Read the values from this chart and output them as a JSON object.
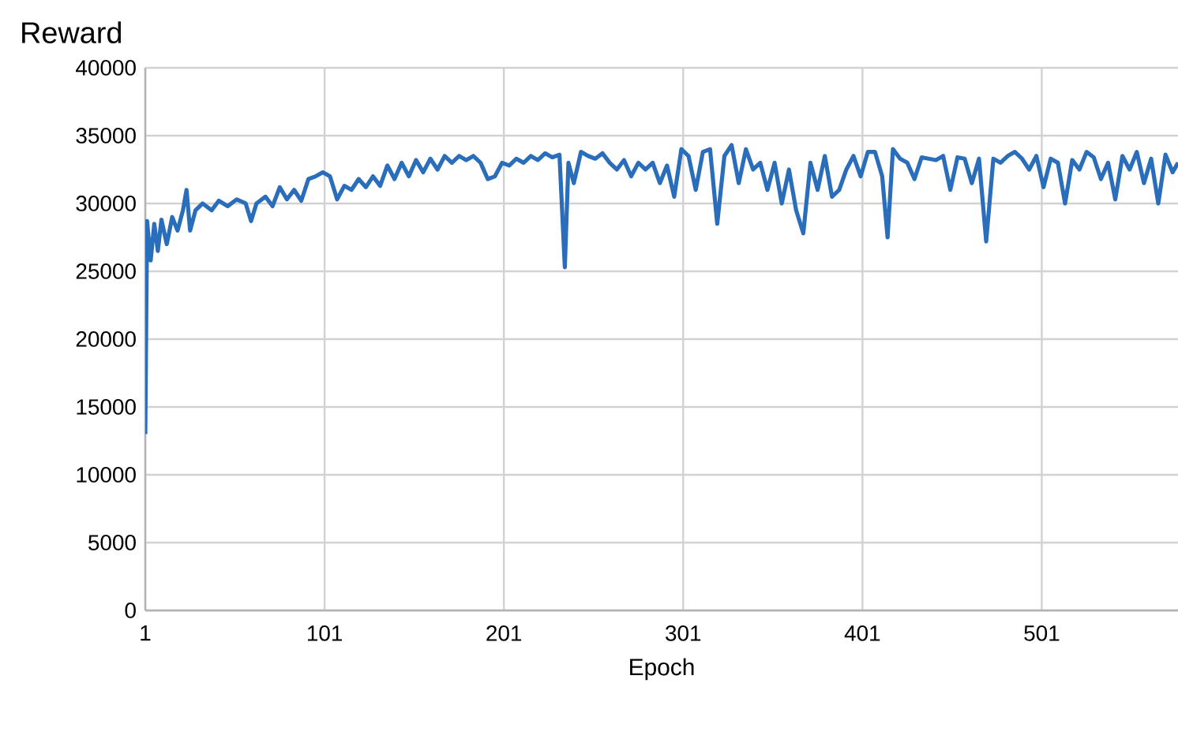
{
  "chart_data": {
    "type": "line",
    "xlabel": "Epoch",
    "ylabel": "Reward",
    "color": "#2a6ebb",
    "grid": true,
    "marker": "none",
    "line_style": "solid",
    "xlim": [
      1,
      577
    ],
    "xticks": [
      1,
      101,
      201,
      301,
      401,
      501
    ],
    "ylim": [
      0,
      40000
    ],
    "yticks": [
      0,
      5000,
      10000,
      15000,
      20000,
      25000,
      30000,
      35000,
      40000
    ],
    "x": [
      1,
      2,
      4,
      6,
      8,
      10,
      13,
      16,
      19,
      22,
      24,
      26,
      29,
      33,
      38,
      42,
      47,
      52,
      57,
      60,
      63,
      68,
      72,
      76,
      80,
      84,
      88,
      92,
      96,
      100,
      104,
      108,
      112,
      116,
      120,
      124,
      128,
      132,
      136,
      140,
      144,
      148,
      152,
      156,
      160,
      164,
      168,
      172,
      176,
      180,
      184,
      188,
      192,
      196,
      200,
      204,
      208,
      212,
      216,
      220,
      224,
      228,
      232,
      235,
      237,
      240,
      244,
      248,
      252,
      256,
      260,
      264,
      268,
      272,
      276,
      280,
      284,
      288,
      292,
      296,
      300,
      304,
      308,
      312,
      316,
      320,
      324,
      328,
      332,
      336,
      340,
      344,
      348,
      352,
      356,
      360,
      364,
      368,
      372,
      376,
      380,
      384,
      388,
      392,
      396,
      400,
      404,
      408,
      412,
      415,
      418,
      422,
      426,
      430,
      434,
      438,
      442,
      446,
      450,
      454,
      458,
      462,
      466,
      470,
      474,
      478,
      482,
      486,
      490,
      494,
      498,
      502,
      506,
      510,
      514,
      518,
      522,
      526,
      530,
      534,
      538,
      542,
      546,
      550,
      554,
      558,
      562,
      566,
      570,
      574,
      577
    ],
    "values": [
      13000,
      28700,
      25800,
      28500,
      26500,
      28800,
      27000,
      29000,
      28000,
      29500,
      31000,
      28000,
      29500,
      30000,
      29500,
      30200,
      29800,
      30300,
      30000,
      28700,
      30000,
      30500,
      29800,
      31200,
      30300,
      31000,
      30200,
      31800,
      32000,
      32300,
      32000,
      30300,
      31300,
      31000,
      31800,
      31200,
      32000,
      31300,
      32800,
      31800,
      33000,
      32000,
      33200,
      32300,
      33300,
      32500,
      33500,
      33000,
      33500,
      33200,
      33500,
      33000,
      31800,
      32000,
      33000,
      32800,
      33300,
      33000,
      33500,
      33200,
      33700,
      33400,
      33600,
      25300,
      33000,
      31500,
      33800,
      33500,
      33300,
      33700,
      33000,
      32500,
      33200,
      32000,
      33000,
      32500,
      33000,
      31500,
      32800,
      30500,
      34000,
      33500,
      31000,
      33800,
      34000,
      28500,
      33500,
      34300,
      31500,
      34000,
      32500,
      33000,
      31000,
      33000,
      30000,
      32500,
      29500,
      27800,
      33000,
      31000,
      33500,
      30500,
      31000,
      32500,
      33500,
      32000,
      33800,
      33800,
      32000,
      27500,
      34000,
      33300,
      33000,
      31800,
      33400,
      33300,
      33200,
      33500,
      31000,
      33400,
      33300,
      31500,
      33300,
      27200,
      33300,
      33000,
      33500,
      33800,
      33300,
      32500,
      33500,
      31200,
      33300,
      33000,
      30000,
      33200,
      32500,
      33800,
      33400,
      31800,
      33000,
      30300,
      33500,
      32500,
      33800,
      31500,
      33300,
      30000,
      33600,
      32300,
      33000
    ]
  }
}
